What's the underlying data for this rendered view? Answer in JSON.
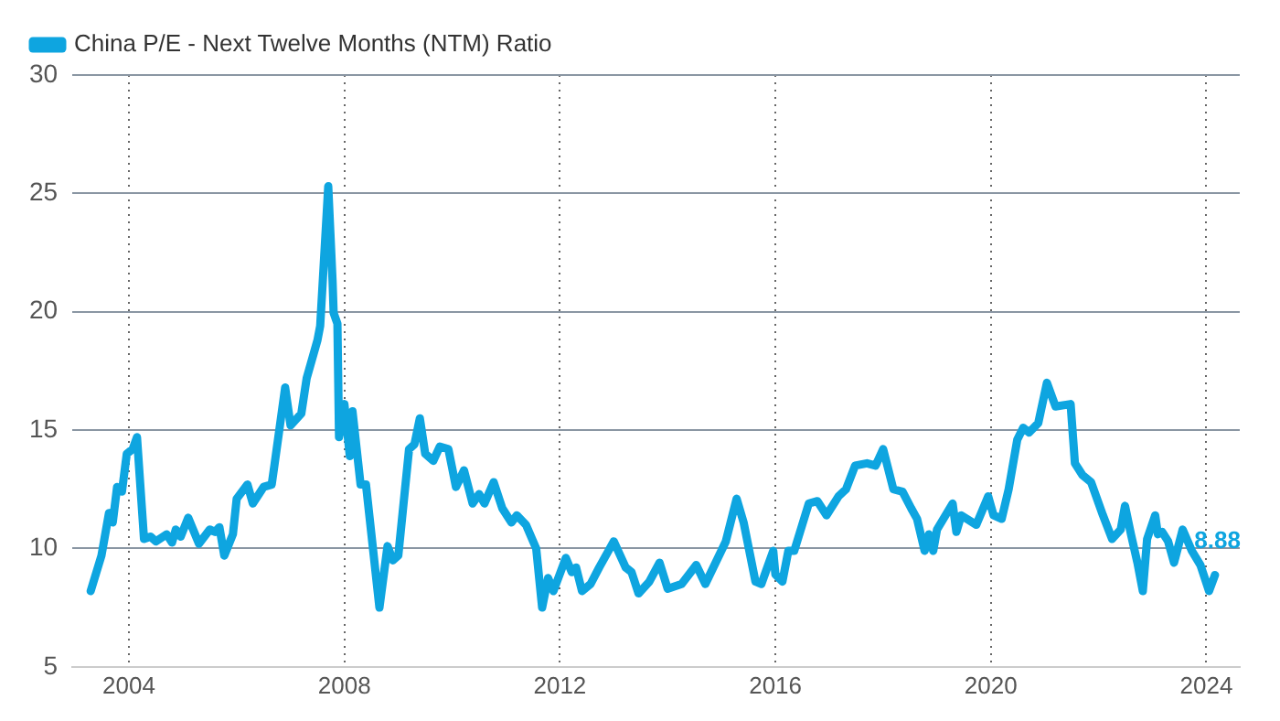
{
  "chart_data": {
    "type": "line",
    "legend": "top left",
    "grid": true,
    "marker": "none",
    "line_style": "solid",
    "xlim": [
      2002.95,
      2024.62
    ],
    "xticks": [
      2004,
      2008,
      2012,
      2016,
      2020,
      2024
    ],
    "ylim": [
      5,
      30
    ],
    "yticks": [
      5,
      10,
      15,
      20,
      25,
      30
    ],
    "annotations": [
      {
        "text": "8.88",
        "x": 2024.16,
        "y": 8.88
      }
    ],
    "series": [
      {
        "name": "China P/E - Next Twelve Months (NTM) Ratio",
        "color": "#0ea5e0",
        "x": [
          2003.29,
          2003.49,
          2003.63,
          2003.7,
          2003.78,
          2003.87,
          2003.96,
          2004.07,
          2004.15,
          2004.28,
          2004.4,
          2004.5,
          2004.7,
          2004.8,
          2004.87,
          2004.96,
          2005.1,
          2005.3,
          2005.5,
          2005.6,
          2005.68,
          2005.77,
          2005.93,
          2006.0,
          2006.2,
          2006.3,
          2006.5,
          2006.65,
          2006.7,
          2006.9,
          2007.0,
          2007.2,
          2007.3,
          2007.5,
          2007.55,
          2007.7,
          2007.78,
          2007.8,
          2007.87,
          2007.9,
          2008.0,
          2008.1,
          2008.15,
          2008.3,
          2008.4,
          2008.65,
          2008.8,
          2008.9,
          2009.0,
          2009.2,
          2009.3,
          2009.4,
          2009.5,
          2009.65,
          2009.77,
          2009.93,
          2010.07,
          2010.22,
          2010.38,
          2010.5,
          2010.6,
          2010.77,
          2010.93,
          2011.1,
          2011.2,
          2011.37,
          2011.56,
          2011.67,
          2011.78,
          2011.88,
          2012.11,
          2012.22,
          2012.3,
          2012.41,
          2012.57,
          2012.73,
          2013.0,
          2013.22,
          2013.33,
          2013.46,
          2013.66,
          2013.85,
          2014.0,
          2014.26,
          2014.53,
          2014.7,
          2015.08,
          2015.28,
          2015.41,
          2015.63,
          2015.74,
          2015.85,
          2015.96,
          2016.0,
          2016.13,
          2016.24,
          2016.35,
          2016.62,
          2016.78,
          2016.95,
          2017.17,
          2017.31,
          2017.48,
          2017.7,
          2017.86,
          2018.0,
          2018.19,
          2018.36,
          2018.52,
          2018.63,
          2018.77,
          2018.85,
          2018.93,
          2019.0,
          2019.29,
          2019.36,
          2019.45,
          2019.73,
          2019.95,
          2020.05,
          2020.2,
          2020.33,
          2020.49,
          2020.6,
          2020.71,
          2020.88,
          2021.04,
          2021.2,
          2021.48,
          2021.56,
          2021.7,
          2021.86,
          2022.08,
          2022.25,
          2022.41,
          2022.49,
          2022.6,
          2022.72,
          2022.82,
          2022.9,
          2023.05,
          2023.1,
          2023.18,
          2023.29,
          2023.4,
          2023.56,
          2023.73,
          2023.89,
          2024.05,
          2024.16
        ],
        "values": [
          8.2,
          9.7,
          11.5,
          11.1,
          12.6,
          12.4,
          14.0,
          14.2,
          14.7,
          10.4,
          10.5,
          10.3,
          10.6,
          10.25,
          10.8,
          10.5,
          11.3,
          10.2,
          10.8,
          10.7,
          10.9,
          9.7,
          10.6,
          12.1,
          12.7,
          11.9,
          12.6,
          12.7,
          13.5,
          16.8,
          15.2,
          15.7,
          17.2,
          18.8,
          19.4,
          25.3,
          21.3,
          19.95,
          19.5,
          14.7,
          16.1,
          13.9,
          15.8,
          12.7,
          12.7,
          7.5,
          10.1,
          9.5,
          9.7,
          14.2,
          14.4,
          15.5,
          14.0,
          13.7,
          14.3,
          14.2,
          12.6,
          13.3,
          11.9,
          12.3,
          11.9,
          12.8,
          11.7,
          11.1,
          11.4,
          11.0,
          10.0,
          7.5,
          8.75,
          8.2,
          9.6,
          9.0,
          9.2,
          8.2,
          8.5,
          9.2,
          10.3,
          9.2,
          9.0,
          8.1,
          8.6,
          9.4,
          8.3,
          8.5,
          9.3,
          8.5,
          10.3,
          12.1,
          11.1,
          8.6,
          8.5,
          9.2,
          9.9,
          8.9,
          8.6,
          9.9,
          9.9,
          11.9,
          12.0,
          11.4,
          12.2,
          12.5,
          13.5,
          13.6,
          13.5,
          14.2,
          12.5,
          12.4,
          11.7,
          11.25,
          9.9,
          10.6,
          9.9,
          10.8,
          11.9,
          10.7,
          11.4,
          11.0,
          12.2,
          11.4,
          11.25,
          12.5,
          14.6,
          15.1,
          14.9,
          15.3,
          17.0,
          16.0,
          16.1,
          13.6,
          13.1,
          12.8,
          11.4,
          10.4,
          10.8,
          11.8,
          10.6,
          9.4,
          8.2,
          10.4,
          11.4,
          10.6,
          10.7,
          10.3,
          9.4,
          10.8,
          9.9,
          9.3,
          8.2,
          8.88
        ]
      }
    ]
  }
}
